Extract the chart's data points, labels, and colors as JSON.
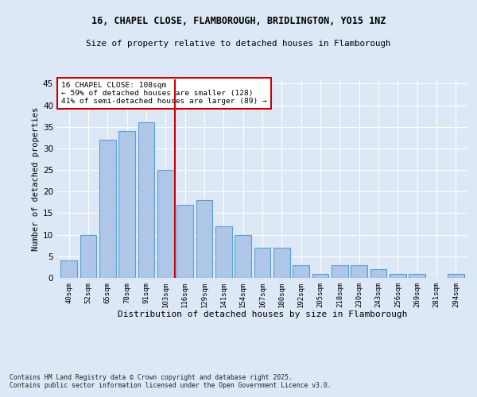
{
  "title1": "16, CHAPEL CLOSE, FLAMBOROUGH, BRIDLINGTON, YO15 1NZ",
  "title2": "Size of property relative to detached houses in Flamborough",
  "xlabel": "Distribution of detached houses by size in Flamborough",
  "ylabel": "Number of detached properties",
  "categories": [
    "40sqm",
    "52sqm",
    "65sqm",
    "78sqm",
    "91sqm",
    "103sqm",
    "116sqm",
    "129sqm",
    "141sqm",
    "154sqm",
    "167sqm",
    "180sqm",
    "192sqm",
    "205sqm",
    "218sqm",
    "230sqm",
    "243sqm",
    "256sqm",
    "269sqm",
    "281sqm",
    "294sqm"
  ],
  "values": [
    4,
    10,
    32,
    34,
    36,
    25,
    17,
    18,
    12,
    10,
    7,
    7,
    3,
    1,
    3,
    3,
    2,
    1,
    1,
    0,
    1
  ],
  "bar_color": "#aec6e8",
  "bar_edge_color": "#5a9fd4",
  "bg_color": "#dce8f5",
  "grid_color": "#ffffff",
  "vline_x": 5.5,
  "vline_color": "#cc0000",
  "annotation_text": "16 CHAPEL CLOSE: 108sqm\n← 59% of detached houses are smaller (128)\n41% of semi-detached houses are larger (89) →",
  "annotation_box_color": "#ffffff",
  "annotation_box_edge": "#cc0000",
  "footer": "Contains HM Land Registry data © Crown copyright and database right 2025.\nContains public sector information licensed under the Open Government Licence v3.0.",
  "ylim": [
    0,
    46
  ],
  "yticks": [
    0,
    5,
    10,
    15,
    20,
    25,
    30,
    35,
    40,
    45
  ]
}
